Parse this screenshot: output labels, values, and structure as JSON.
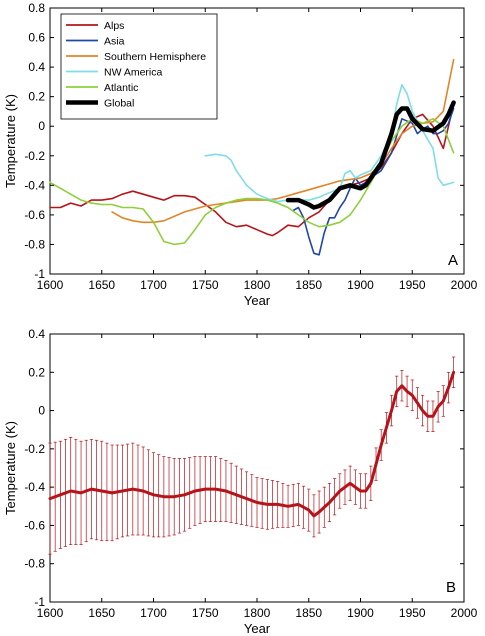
{
  "colors": {
    "alps": "#b5141b",
    "asia": "#1f47a6",
    "southern": "#e0862a",
    "nwamerica": "#7fdde8",
    "atlantic": "#8fcf3c",
    "global": "#000000",
    "panelB": "#b5141b"
  },
  "chart_data": [
    {
      "type": "line",
      "panel_label": "A",
      "title": "",
      "xlabel": "Year",
      "ylabel": "Temperature (K)",
      "xlim": [
        1600,
        2000
      ],
      "ylim": [
        -1,
        0.8
      ],
      "xticks": [
        "1600",
        "1650",
        "1700",
        "1750",
        "1800",
        "1850",
        "1900",
        "1950",
        "2000"
      ],
      "yticks": [
        "0.8",
        "0.6",
        "0.4",
        "0.2",
        "0",
        "-0.2",
        "-0.4",
        "-0.6",
        "-0.8",
        "-1"
      ],
      "legend_position": "top-left",
      "grid": false,
      "series": [
        {
          "name": "Alps",
          "key": "alps",
          "width": 1.6,
          "x": [
            1600,
            1610,
            1620,
            1630,
            1640,
            1650,
            1660,
            1670,
            1680,
            1690,
            1700,
            1710,
            1720,
            1730,
            1740,
            1750,
            1760,
            1770,
            1780,
            1790,
            1800,
            1810,
            1815,
            1820,
            1830,
            1840,
            1850,
            1860,
            1870,
            1880,
            1890,
            1900,
            1910,
            1920,
            1930,
            1940,
            1950,
            1960,
            1970,
            1980,
            1990
          ],
          "y": [
            -0.55,
            -0.55,
            -0.52,
            -0.54,
            -0.5,
            -0.5,
            -0.49,
            -0.46,
            -0.44,
            -0.46,
            -0.48,
            -0.5,
            -0.47,
            -0.47,
            -0.48,
            -0.53,
            -0.58,
            -0.65,
            -0.68,
            -0.67,
            -0.7,
            -0.73,
            -0.74,
            -0.72,
            -0.67,
            -0.68,
            -0.62,
            -0.58,
            -0.5,
            -0.43,
            -0.4,
            -0.38,
            -0.35,
            -0.28,
            -0.18,
            -0.05,
            0.05,
            0.08,
            0.0,
            -0.15,
            0.15
          ]
        },
        {
          "name": "Asia",
          "key": "asia",
          "width": 1.6,
          "x": [
            1835,
            1840,
            1845,
            1850,
            1855,
            1860,
            1865,
            1870,
            1875,
            1880,
            1885,
            1890,
            1895,
            1900,
            1905,
            1910,
            1920,
            1930,
            1940,
            1950,
            1955,
            1960,
            1965,
            1970,
            1975,
            1980,
            1985,
            1990
          ],
          "y": [
            -0.57,
            -0.55,
            -0.62,
            -0.75,
            -0.86,
            -0.87,
            -0.72,
            -0.62,
            -0.62,
            -0.55,
            -0.5,
            -0.42,
            -0.35,
            -0.4,
            -0.38,
            -0.35,
            -0.3,
            -0.18,
            0.05,
            0.02,
            -0.05,
            -0.02,
            0.0,
            -0.05,
            -0.05,
            -0.03,
            0.02,
            0.12
          ]
        },
        {
          "name": "Southern Hemisphere",
          "key": "southern",
          "width": 1.6,
          "x": [
            1660,
            1670,
            1680,
            1690,
            1700,
            1710,
            1720,
            1730,
            1740,
            1750,
            1760,
            1770,
            1780,
            1790,
            1800,
            1810,
            1820,
            1830,
            1840,
            1850,
            1860,
            1870,
            1880,
            1890,
            1900,
            1910,
            1920,
            1930,
            1940,
            1950,
            1960,
            1970,
            1980,
            1990
          ],
          "y": [
            -0.58,
            -0.62,
            -0.64,
            -0.65,
            -0.65,
            -0.64,
            -0.61,
            -0.58,
            -0.56,
            -0.54,
            -0.53,
            -0.52,
            -0.51,
            -0.5,
            -0.5,
            -0.5,
            -0.49,
            -0.47,
            -0.45,
            -0.43,
            -0.41,
            -0.39,
            -0.37,
            -0.36,
            -0.35,
            -0.32,
            -0.26,
            -0.15,
            -0.05,
            0.0,
            0.02,
            0.03,
            0.1,
            0.45
          ]
        },
        {
          "name": "NW America",
          "key": "nwamerica",
          "width": 1.6,
          "x": [
            1750,
            1760,
            1770,
            1775,
            1780,
            1790,
            1800,
            1810,
            1820,
            1830,
            1840,
            1850,
            1860,
            1870,
            1880,
            1885,
            1890,
            1895,
            1900,
            1910,
            1920,
            1930,
            1935,
            1940,
            1945,
            1950,
            1960,
            1970,
            1975,
            1980,
            1990
          ],
          "y": [
            -0.2,
            -0.19,
            -0.2,
            -0.23,
            -0.3,
            -0.4,
            -0.46,
            -0.49,
            -0.51,
            -0.5,
            -0.5,
            -0.5,
            -0.48,
            -0.45,
            -0.42,
            -0.32,
            -0.3,
            -0.35,
            -0.33,
            -0.3,
            -0.2,
            -0.05,
            0.15,
            0.28,
            0.22,
            0.1,
            -0.03,
            -0.15,
            -0.35,
            -0.4,
            -0.38
          ]
        },
        {
          "name": "Atlantic",
          "key": "atlantic",
          "width": 1.6,
          "x": [
            1600,
            1610,
            1620,
            1630,
            1640,
            1650,
            1660,
            1670,
            1680,
            1690,
            1700,
            1710,
            1720,
            1730,
            1740,
            1750,
            1760,
            1770,
            1780,
            1790,
            1800,
            1810,
            1820,
            1830,
            1840,
            1850,
            1860,
            1870,
            1880,
            1890,
            1900,
            1910,
            1920,
            1930,
            1940,
            1950,
            1960,
            1970,
            1980,
            1990
          ],
          "y": [
            -0.38,
            -0.42,
            -0.46,
            -0.5,
            -0.52,
            -0.53,
            -0.53,
            -0.55,
            -0.55,
            -0.56,
            -0.65,
            -0.78,
            -0.8,
            -0.79,
            -0.7,
            -0.6,
            -0.55,
            -0.52,
            -0.5,
            -0.49,
            -0.49,
            -0.5,
            -0.52,
            -0.55,
            -0.6,
            -0.65,
            -0.68,
            -0.67,
            -0.65,
            -0.6,
            -0.5,
            -0.38,
            -0.25,
            -0.1,
            0.0,
            0.05,
            0.02,
            0.05,
            0.0,
            -0.18
          ]
        },
        {
          "name": "Global",
          "key": "global",
          "width": 4.5,
          "x": [
            1830,
            1840,
            1850,
            1855,
            1860,
            1870,
            1880,
            1890,
            1900,
            1905,
            1910,
            1920,
            1930,
            1935,
            1940,
            1945,
            1950,
            1960,
            1970,
            1980,
            1985,
            1990
          ],
          "y": [
            -0.5,
            -0.5,
            -0.53,
            -0.55,
            -0.54,
            -0.5,
            -0.42,
            -0.4,
            -0.42,
            -0.4,
            -0.35,
            -0.25,
            -0.05,
            0.08,
            0.12,
            0.12,
            0.05,
            -0.02,
            -0.03,
            0.02,
            0.08,
            0.16
          ]
        }
      ]
    },
    {
      "type": "line",
      "panel_label": "B",
      "title": "",
      "xlabel": "Year",
      "ylabel": "Temperature (K)",
      "xlim": [
        1600,
        2000
      ],
      "ylim": [
        -1,
        0.4
      ],
      "xticks": [
        "1600",
        "1650",
        "1700",
        "1750",
        "1800",
        "1850",
        "1900",
        "1950",
        "2000"
      ],
      "yticks": [
        "0.4",
        "0.2",
        "0",
        "-0.2",
        "-0.4",
        "-0.6",
        "-0.8",
        "-1"
      ],
      "grid": false,
      "error_bars": true,
      "series": [
        {
          "key": "panelB",
          "width": 3,
          "x": [
            1600,
            1610,
            1620,
            1630,
            1640,
            1650,
            1660,
            1670,
            1680,
            1690,
            1700,
            1710,
            1720,
            1730,
            1740,
            1750,
            1760,
            1770,
            1780,
            1790,
            1800,
            1810,
            1820,
            1830,
            1840,
            1850,
            1855,
            1860,
            1870,
            1880,
            1890,
            1900,
            1905,
            1910,
            1920,
            1930,
            1935,
            1940,
            1945,
            1950,
            1960,
            1965,
            1970,
            1975,
            1980,
            1985,
            1990
          ],
          "y": [
            -0.46,
            -0.44,
            -0.42,
            -0.43,
            -0.41,
            -0.42,
            -0.43,
            -0.42,
            -0.41,
            -0.42,
            -0.44,
            -0.45,
            -0.45,
            -0.44,
            -0.42,
            -0.41,
            -0.41,
            -0.42,
            -0.44,
            -0.46,
            -0.48,
            -0.49,
            -0.49,
            -0.5,
            -0.49,
            -0.52,
            -0.55,
            -0.53,
            -0.48,
            -0.42,
            -0.38,
            -0.42,
            -0.42,
            -0.38,
            -0.18,
            0.0,
            0.1,
            0.13,
            0.1,
            0.08,
            0.0,
            -0.03,
            -0.03,
            0.02,
            0.05,
            0.12,
            0.2
          ],
          "error": [
            0.29,
            0.28,
            0.28,
            0.27,
            0.26,
            0.26,
            0.25,
            0.24,
            0.24,
            0.23,
            0.22,
            0.21,
            0.2,
            0.19,
            0.18,
            0.17,
            0.17,
            0.16,
            0.15,
            0.14,
            0.13,
            0.13,
            0.12,
            0.11,
            0.11,
            0.11,
            0.11,
            0.11,
            0.1,
            0.09,
            0.09,
            0.09,
            0.09,
            0.09,
            0.08,
            0.08,
            0.08,
            0.08,
            0.08,
            0.08,
            0.08,
            0.08,
            0.08,
            0.08,
            0.08,
            0.08,
            0.08
          ]
        }
      ]
    }
  ]
}
